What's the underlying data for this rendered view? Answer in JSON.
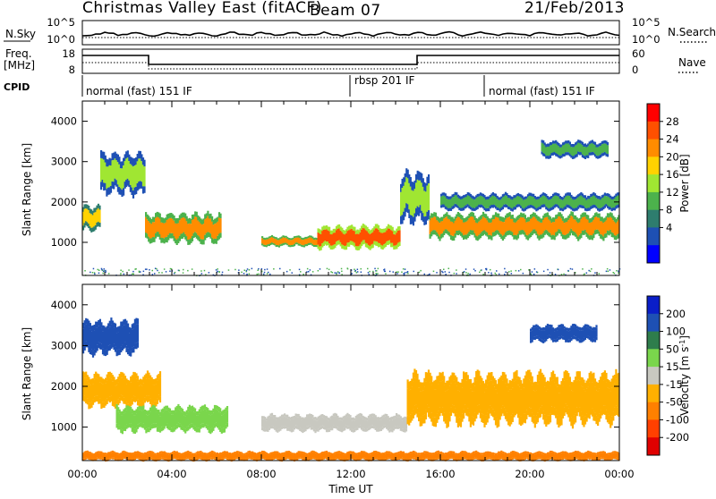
{
  "header": {
    "title": "Christmas Valley East (fitACF)",
    "beam": "Beam 07",
    "date": "21/Feb/2013"
  },
  "noise_panel": {
    "left_label": "N.Sky",
    "right_label": "N.Search",
    "left_ticks": [
      "10^5",
      "10^0"
    ],
    "right_ticks": [
      "10^5",
      "10^0"
    ]
  },
  "freq_panel": {
    "left_label_line1": "Freq.",
    "left_label_line2": "[MHz]",
    "right_label": "Nave",
    "left_ticks": [
      "18",
      "8"
    ],
    "right_ticks": [
      "60",
      "0"
    ]
  },
  "cpid": {
    "label": "CPID",
    "segments": [
      "normal (fast) 151 IF",
      "rbsp 201 IF",
      "normal (fast) 151 IF"
    ]
  },
  "axes": {
    "ylabel": "Slant Range [km]",
    "xlabel": "Time UT",
    "yticks": [
      "4000",
      "3000",
      "2000",
      "1000"
    ],
    "xticks": [
      "00:00",
      "04:00",
      "08:00",
      "12:00",
      "16:00",
      "20:00",
      "00:00"
    ]
  },
  "power_scale": {
    "label": "Power [dB]",
    "ticks": [
      "28",
      "24",
      "20",
      "16",
      "12",
      "8",
      "4"
    ],
    "colors": [
      "#ff0000",
      "#ff5000",
      "#ff8c00",
      "#ffd200",
      "#a0e632",
      "#4cb24c",
      "#2e7d6e",
      "#1e50b4",
      "#0000ff"
    ]
  },
  "velocity_scale": {
    "label_prefix": "Velocity [m s",
    "label_exp": "-1",
    "label_suffix": "]",
    "ticks": [
      "200",
      "100",
      "50",
      "15",
      "-15",
      "-50",
      "-100",
      "-200"
    ],
    "colors": [
      "#0a1ec8",
      "#1e50b4",
      "#2e7d4c",
      "#7ad64c",
      "#c8c8c0",
      "#ffb000",
      "#ff8000",
      "#ff4000",
      "#e00000"
    ]
  },
  "chart_data": [
    {
      "type": "heatmap",
      "title": "Power [dB]",
      "xlabel": "Time UT",
      "ylabel": "Slant Range [km]",
      "xlim": [
        0,
        24
      ],
      "ylim": [
        180,
        4500
      ],
      "bands": [
        {
          "t": [
            0.0,
            0.8
          ],
          "r": [
            1300,
            1900
          ],
          "value": 20
        },
        {
          "t": [
            0.8,
            2.8
          ],
          "r": [
            2200,
            3200
          ],
          "value": 16
        },
        {
          "t": [
            2.8,
            6.2
          ],
          "r": [
            1000,
            1700
          ],
          "value": 24
        },
        {
          "t": [
            8.0,
            10.5
          ],
          "r": [
            900,
            1150
          ],
          "value": 24
        },
        {
          "t": [
            10.5,
            14.2
          ],
          "r": [
            850,
            1400
          ],
          "value": 28
        },
        {
          "t": [
            14.2,
            15.5
          ],
          "r": [
            1500,
            2700
          ],
          "value": 16
        },
        {
          "t": [
            15.5,
            24.0
          ],
          "r": [
            1100,
            1700
          ],
          "value": 24
        },
        {
          "t": [
            16.0,
            24.0
          ],
          "r": [
            1800,
            2200
          ],
          "value": 12
        },
        {
          "t": [
            20.5,
            23.5
          ],
          "r": [
            3100,
            3500
          ],
          "value": 12
        }
      ]
    },
    {
      "type": "heatmap",
      "title": "Velocity [m s-1]",
      "xlabel": "Time UT",
      "ylabel": "Slant Range [km]",
      "xlim": [
        0,
        24
      ],
      "ylim": [
        180,
        4500
      ],
      "bands": [
        {
          "t": [
            0.0,
            2.5
          ],
          "r": [
            2800,
            3600
          ],
          "value": 200
        },
        {
          "t": [
            0.0,
            3.5
          ],
          "r": [
            1500,
            2300
          ],
          "value": -15
        },
        {
          "t": [
            1.5,
            6.5
          ],
          "r": [
            900,
            1500
          ],
          "value": 50
        },
        {
          "t": [
            8.0,
            14.5
          ],
          "r": [
            900,
            1300
          ],
          "value": 15
        },
        {
          "t": [
            14.5,
            24.0
          ],
          "r": [
            1100,
            2300
          ],
          "value": -15
        },
        {
          "t": [
            20.0,
            23.0
          ],
          "r": [
            3100,
            3500
          ],
          "value": 200
        },
        {
          "t": [
            0.0,
            24.0
          ],
          "r": [
            180,
            400
          ],
          "value": -50
        }
      ]
    }
  ]
}
